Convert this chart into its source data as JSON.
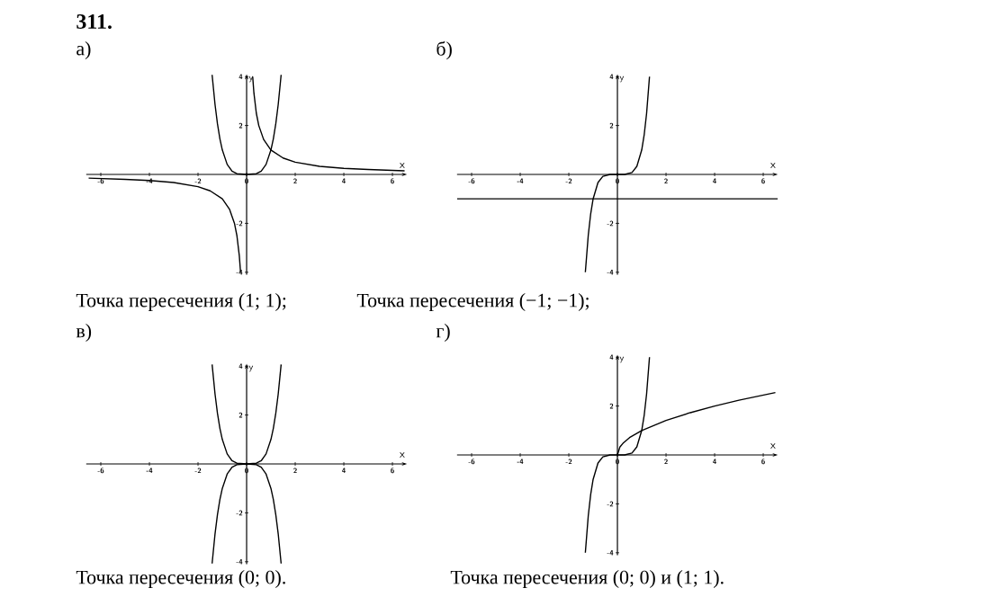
{
  "chart_data": [
    {
      "type": "line",
      "title": "а)",
      "xlabel": "x",
      "ylabel": "y",
      "xlim": [
        -6.6,
        6.6
      ],
      "ylim": [
        -4.1,
        4.1
      ],
      "xticks": [
        -6,
        -4,
        -2,
        0,
        2,
        4,
        6
      ],
      "yticks": [
        -4,
        -2,
        2,
        4
      ],
      "grid": false,
      "marker": "none",
      "annotations": [
        "311.",
        "Точка пересечения (1; 1);"
      ],
      "series": [
        {
          "color": "#000000",
          "x": [
            -1.42,
            -1.3,
            -1.2,
            -1.1,
            -1,
            -0.8,
            -0.6,
            -0.4,
            0,
            0.4,
            0.6,
            0.8,
            1,
            1.1,
            1.2,
            1.3,
            1.42
          ],
          "values": [
            4.07,
            2.86,
            2.07,
            1.46,
            1,
            0.41,
            0.13,
            0.03,
            0,
            0.03,
            0.13,
            0.41,
            1,
            1.46,
            2.07,
            2.86,
            4.07
          ]
        },
        {
          "color": "#000000",
          "x": [
            -6.5,
            -5,
            -4,
            -3,
            -2,
            -1.5,
            -1,
            -0.7,
            -0.5,
            -0.4,
            -0.3,
            -0.25,
            0,
            0.25,
            0.3,
            0.4,
            0.5,
            0.7,
            1,
            1.5,
            2,
            3,
            4,
            5,
            6.5
          ],
          "values": [
            -0.15,
            -0.2,
            -0.25,
            -0.33,
            -0.5,
            -0.67,
            -1,
            -1.43,
            -2,
            -2.5,
            -3.33,
            -4,
            null,
            4,
            3.33,
            2.5,
            2,
            1.43,
            1,
            0.67,
            0.5,
            0.33,
            0.25,
            0.2,
            0.15
          ]
        }
      ]
    },
    {
      "type": "line",
      "title": "б)",
      "xlabel": "x",
      "ylabel": "y",
      "xlim": [
        -6.6,
        6.6
      ],
      "ylim": [
        -4.1,
        4.1
      ],
      "xticks": [
        -6,
        -4,
        -2,
        0,
        2,
        4,
        6
      ],
      "yticks": [
        -4,
        -2,
        2,
        4
      ],
      "grid": false,
      "marker": "none",
      "annotations": [
        "Точка пересечения (−1; −1);"
      ],
      "ref_lines": [
        {
          "axis": "y",
          "value": -1
        }
      ],
      "series": [
        {
          "color": "#000000",
          "x": [
            -1.32,
            -1.2,
            -1.1,
            -1,
            -0.8,
            -0.6,
            -0.3,
            0,
            0.3,
            0.6,
            0.8,
            1,
            1.1,
            1.2,
            1.32
          ],
          "values": [
            -4,
            -2.49,
            -1.61,
            -1,
            -0.33,
            -0.08,
            0,
            0,
            0,
            0.08,
            0.33,
            1,
            1.61,
            2.49,
            4
          ]
        }
      ]
    },
    {
      "type": "line",
      "title": "в)",
      "xlabel": "x",
      "ylabel": "y",
      "xlim": [
        -6.6,
        6.6
      ],
      "ylim": [
        -4.1,
        4.1
      ],
      "xticks": [
        -6,
        -4,
        -2,
        0,
        2,
        4,
        6
      ],
      "yticks": [
        -4,
        -2,
        2,
        4
      ],
      "grid": false,
      "marker": "none",
      "annotations": [
        "Точка пересечения (0; 0)."
      ],
      "series": [
        {
          "color": "#000000",
          "x": [
            -1.42,
            -1.3,
            -1.2,
            -1.1,
            -1,
            -0.8,
            -0.6,
            -0.4,
            0,
            0.4,
            0.6,
            0.8,
            1,
            1.1,
            1.2,
            1.3,
            1.42
          ],
          "values": [
            4.07,
            2.86,
            2.07,
            1.46,
            1,
            0.41,
            0.13,
            0.03,
            0,
            0.03,
            0.13,
            0.41,
            1,
            1.46,
            2.07,
            2.86,
            4.07
          ]
        },
        {
          "color": "#000000",
          "x": [
            -1.42,
            -1.3,
            -1.2,
            -1.1,
            -1,
            -0.8,
            -0.6,
            -0.4,
            0,
            0.4,
            0.6,
            0.8,
            1,
            1.1,
            1.2,
            1.3,
            1.42
          ],
          "values": [
            -4.07,
            -2.86,
            -2.07,
            -1.46,
            -1,
            -0.41,
            -0.13,
            -0.03,
            0,
            -0.03,
            -0.13,
            -0.41,
            -1,
            -1.46,
            -2.07,
            -2.86,
            -4.07
          ]
        }
      ]
    },
    {
      "type": "line",
      "title": "г)",
      "xlabel": "x",
      "ylabel": "y",
      "xlim": [
        -6.6,
        6.6
      ],
      "ylim": [
        -4.1,
        4.1
      ],
      "xticks": [
        -6,
        -4,
        -2,
        0,
        2,
        4,
        6
      ],
      "yticks": [
        -4,
        -2,
        2,
        4
      ],
      "grid": false,
      "marker": "none",
      "annotations": [
        "Точка пересечения (0; 0) и (1; 1)."
      ],
      "series": [
        {
          "color": "#000000",
          "x": [
            -1.32,
            -1.2,
            -1.1,
            -1,
            -0.8,
            -0.6,
            -0.3,
            0,
            0.3,
            0.6,
            0.8,
            1,
            1.1,
            1.2,
            1.32
          ],
          "values": [
            -4,
            -2.49,
            -1.61,
            -1,
            -0.33,
            -0.08,
            0,
            0,
            0,
            0.08,
            0.33,
            1,
            1.61,
            2.49,
            4
          ]
        },
        {
          "color": "#000000",
          "x": [
            0,
            0.1,
            0.25,
            0.5,
            1,
            2,
            3,
            4,
            5,
            6.5
          ],
          "values": [
            0,
            0.32,
            0.5,
            0.71,
            1,
            1.41,
            1.73,
            2,
            2.24,
            2.55
          ]
        }
      ]
    }
  ]
}
